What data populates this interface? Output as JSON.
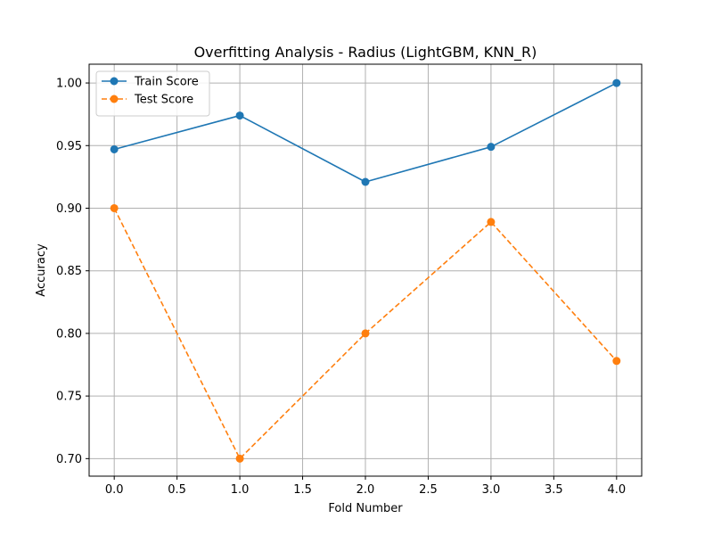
{
  "chart_data": {
    "type": "line",
    "title": "Overfitting Analysis - Radius (LightGBM, KNN_R)",
    "xlabel": "Fold Number",
    "ylabel": "Accuracy",
    "x": [
      0,
      1,
      2,
      3,
      4
    ],
    "xlim": [
      -0.2,
      4.2
    ],
    "ylim": [
      0.686,
      1.015
    ],
    "xticks": [
      0.0,
      0.5,
      1.0,
      1.5,
      2.0,
      2.5,
      3.0,
      3.5,
      4.0
    ],
    "xtick_labels": [
      "0.0",
      "0.5",
      "1.0",
      "1.5",
      "2.0",
      "2.5",
      "3.0",
      "3.5",
      "4.0"
    ],
    "yticks": [
      0.7,
      0.75,
      0.8,
      0.85,
      0.9,
      0.95,
      1.0
    ],
    "ytick_labels": [
      "0.70",
      "0.75",
      "0.80",
      "0.85",
      "0.90",
      "0.95",
      "1.00"
    ],
    "grid": true,
    "legend_position": "top-left",
    "series": [
      {
        "name": "Train Score",
        "values": [
          0.947,
          0.974,
          0.921,
          0.949,
          1.0
        ],
        "color": "#1f77b4",
        "line_style": "solid",
        "marker": "circle"
      },
      {
        "name": "Test Score",
        "values": [
          0.9,
          0.7,
          0.8,
          0.889,
          0.778
        ],
        "color": "#ff7f0e",
        "line_style": "dashed",
        "marker": "circle"
      }
    ]
  }
}
